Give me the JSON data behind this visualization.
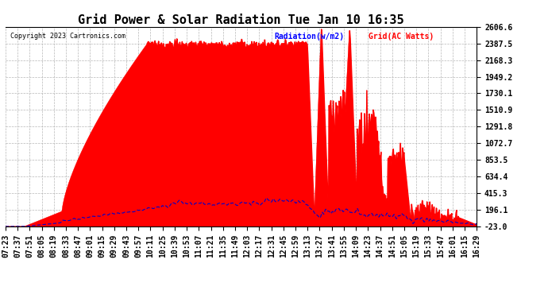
{
  "title": "Grid Power & Solar Radiation Tue Jan 10 16:35",
  "copyright": "Copyright 2023 Cartronics.com",
  "legend_radiation": "Radiation(w/m2)",
  "legend_grid": "Grid(AC Watts)",
  "yticks": [
    2606.6,
    2387.5,
    2168.3,
    1949.2,
    1730.1,
    1510.9,
    1291.8,
    1072.7,
    853.5,
    634.4,
    415.3,
    196.1,
    -23.0
  ],
  "ymin": -23.0,
  "ymax": 2606.6,
  "bg_color": "#ffffff",
  "plot_bg_color": "#ffffff",
  "grid_color": "#b0b0b0",
  "radiation_fill_color": "#ff0000",
  "radiation_line_color": "#ff0000",
  "grid_line_color": "#0000cc",
  "title_fontsize": 11,
  "tick_fontsize": 7,
  "xtick_labels": [
    "07:23",
    "07:37",
    "07:51",
    "08:05",
    "08:19",
    "08:33",
    "08:47",
    "09:01",
    "09:15",
    "09:29",
    "09:43",
    "09:57",
    "10:11",
    "10:25",
    "10:39",
    "10:53",
    "11:07",
    "11:21",
    "11:35",
    "11:49",
    "12:03",
    "12:17",
    "12:31",
    "12:45",
    "12:59",
    "13:13",
    "13:27",
    "13:41",
    "13:55",
    "14:09",
    "14:23",
    "14:37",
    "14:51",
    "15:05",
    "15:19",
    "15:33",
    "15:47",
    "16:01",
    "16:15",
    "16:29"
  ]
}
